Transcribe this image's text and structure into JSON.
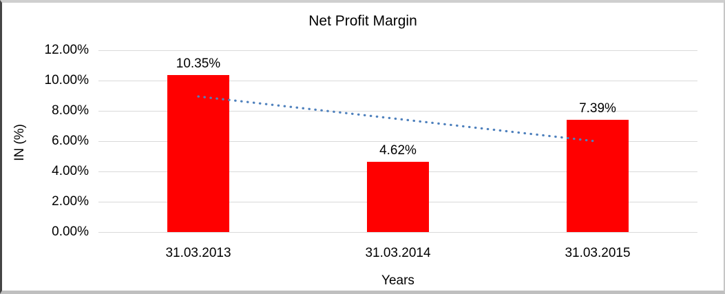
{
  "chart_data": {
    "type": "bar",
    "title": "Net Profit Margin",
    "xlabel": "Years",
    "ylabel": "IN (%)",
    "categories": [
      "31.03.2013",
      "31.03.2014",
      "31.03.2015"
    ],
    "values": [
      10.35,
      4.62,
      7.39
    ],
    "data_labels": [
      "10.35%",
      "4.62%",
      "7.39%"
    ],
    "ylim": [
      0,
      12
    ],
    "ytick_values": [
      0,
      2,
      4,
      6,
      8,
      10,
      12
    ],
    "ytick_labels": [
      "0.00%",
      "2.00%",
      "4.00%",
      "6.00%",
      "8.00%",
      "10.00%",
      "12.00%"
    ],
    "grid": true,
    "legend": "none",
    "bar_color": "#ff0000",
    "gridline_color": "#d9d9d9",
    "text_color": "#000000",
    "background_color": "#ffffff",
    "trendline": {
      "type": "linear",
      "line_style": "dotted",
      "color": "#4f81bd",
      "start_value": 8.95,
      "end_value": 5.98
    }
  }
}
